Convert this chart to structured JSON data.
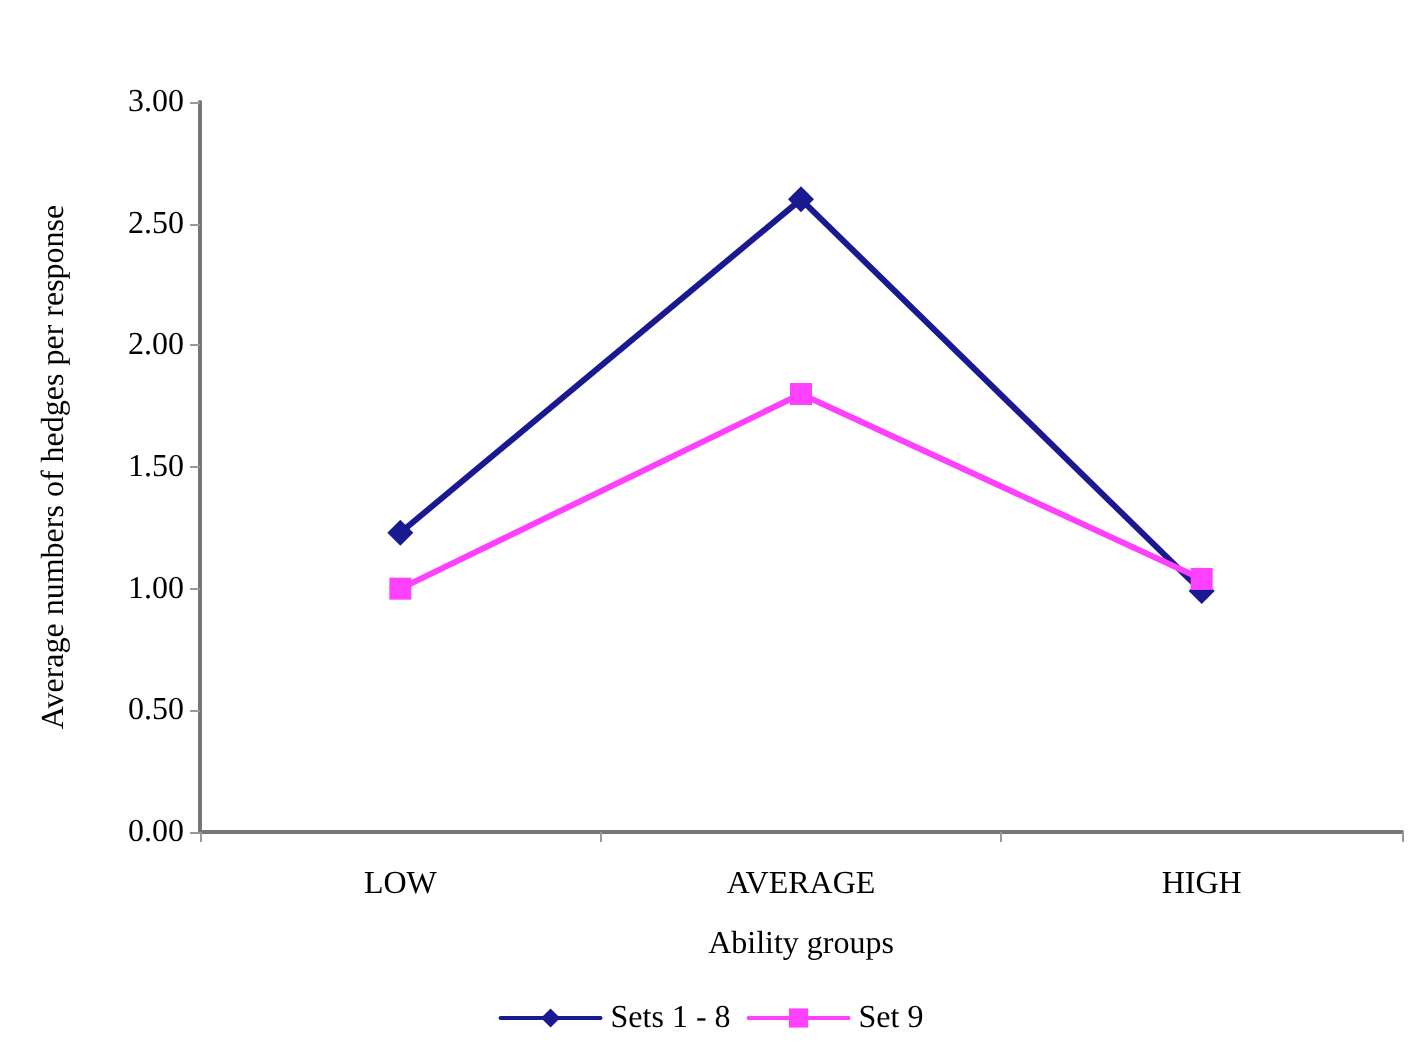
{
  "chart_data": {
    "type": "line",
    "xlabel": "Ability groups",
    "ylabel": "Average numbers of hedges per response",
    "categories": [
      "LOW",
      "AVERAGE",
      "HIGH"
    ],
    "series": [
      {
        "name": "Sets 1 - 8",
        "color": "#191991",
        "marker": "diamond",
        "values": [
          1.23,
          2.6,
          0.99
        ]
      },
      {
        "name": "Set 9",
        "color": "#ff40ff",
        "marker": "square",
        "values": [
          1.0,
          1.8,
          1.04
        ]
      }
    ],
    "ylim": [
      0,
      3
    ],
    "yticks": [
      {
        "value": 0,
        "label": "0.00"
      },
      {
        "value": 0.5,
        "label": "0.50"
      },
      {
        "value": 1,
        "label": "1.00"
      },
      {
        "value": 1.5,
        "label": "1.50"
      },
      {
        "value": 2,
        "label": "2.00"
      },
      {
        "value": 2.5,
        "label": "2.50"
      },
      {
        "value": 3,
        "label": "3.00"
      }
    ],
    "grid": false,
    "legend": "bottom"
  }
}
